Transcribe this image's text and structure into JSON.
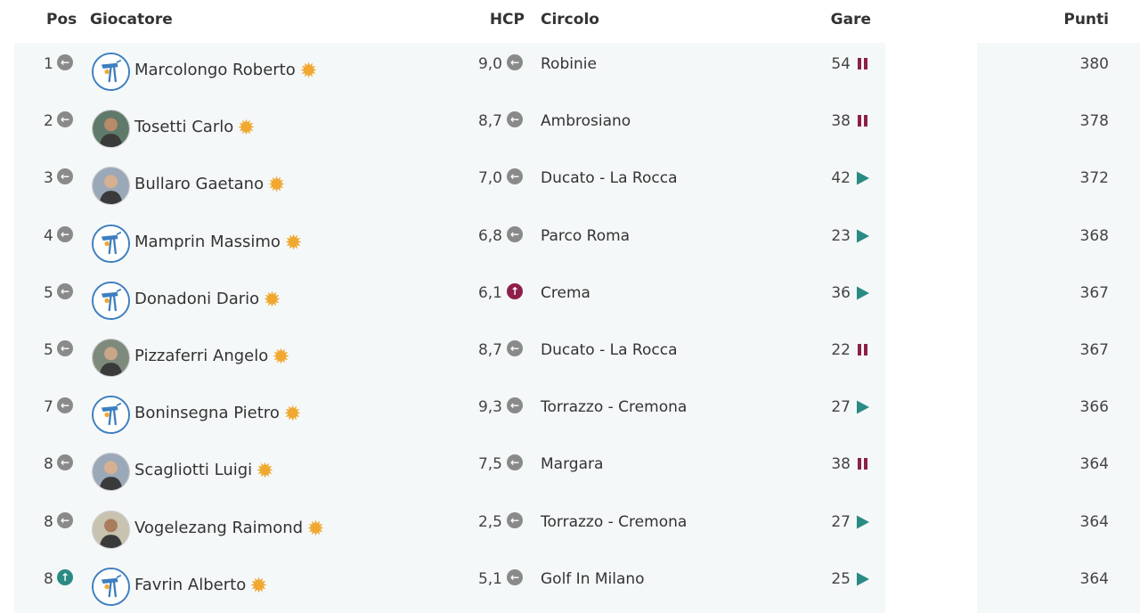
{
  "header": {
    "pos": "Pos",
    "giocatore": "Giocatore",
    "hcp": "HCP",
    "circolo": "Circolo",
    "gare": "Gare",
    "punti": "Punti"
  },
  "colors": {
    "trend_same": "#8a8a8a",
    "trend_up_teal": "#2a8a84",
    "trend_up_red": "#8e1f4a",
    "pause": "#8e1f4a",
    "play": "#2a8a84",
    "sun": "#f0a830",
    "band": "#f5f8f9"
  },
  "rows": [
    {
      "pos": "1",
      "pos_trend": "same",
      "avatar": "logo",
      "name": "Marcolongo Roberto",
      "hcp": "9,0",
      "hcp_trend": "same",
      "circolo": "Robinie",
      "gare": "54",
      "gare_status": "pause",
      "punti": "380"
    },
    {
      "pos": "2",
      "pos_trend": "same",
      "avatar": "photo",
      "name": "Tosetti Carlo",
      "hcp": "8,7",
      "hcp_trend": "same",
      "circolo": "Ambrosiano",
      "gare": "38",
      "gare_status": "pause",
      "punti": "378"
    },
    {
      "pos": "3",
      "pos_trend": "same",
      "avatar": "photo",
      "name": "Bullaro Gaetano",
      "hcp": "7,0",
      "hcp_trend": "same",
      "circolo": "Ducato - La Rocca",
      "gare": "42",
      "gare_status": "play",
      "punti": "372"
    },
    {
      "pos": "4",
      "pos_trend": "same",
      "avatar": "logo",
      "name": "Mamprin Massimo",
      "hcp": "6,8",
      "hcp_trend": "same",
      "circolo": "Parco Roma",
      "gare": "23",
      "gare_status": "play",
      "punti": "368"
    },
    {
      "pos": "5",
      "pos_trend": "same",
      "avatar": "logo",
      "name": "Donadoni Dario",
      "hcp": "6,1",
      "hcp_trend": "up-red",
      "circolo": "Crema",
      "gare": "36",
      "gare_status": "play",
      "punti": "367"
    },
    {
      "pos": "5",
      "pos_trend": "same",
      "avatar": "photo",
      "name": "Pizzaferri Angelo",
      "hcp": "8,7",
      "hcp_trend": "same",
      "circolo": "Ducato - La Rocca",
      "gare": "22",
      "gare_status": "pause",
      "punti": "367"
    },
    {
      "pos": "7",
      "pos_trend": "same",
      "avatar": "logo",
      "name": "Boninsegna Pietro",
      "hcp": "9,3",
      "hcp_trend": "same",
      "circolo": "Torrazzo - Cremona",
      "gare": "27",
      "gare_status": "play",
      "punti": "366"
    },
    {
      "pos": "8",
      "pos_trend": "same",
      "avatar": "photo",
      "name": "Scagliotti Luigi",
      "hcp": "7,5",
      "hcp_trend": "same",
      "circolo": "Margara",
      "gare": "38",
      "gare_status": "pause",
      "punti": "364"
    },
    {
      "pos": "8",
      "pos_trend": "same",
      "avatar": "photo",
      "name": "Vogelezang Raimond",
      "hcp": "2,5",
      "hcp_trend": "same",
      "circolo": "Torrazzo - Cremona",
      "gare": "27",
      "gare_status": "play",
      "punti": "364"
    },
    {
      "pos": "8",
      "pos_trend": "up-teal",
      "avatar": "logo",
      "name": "Favrin Alberto",
      "hcp": "5,1",
      "hcp_trend": "same",
      "circolo": "Golf In Milano",
      "gare": "25",
      "gare_status": "play",
      "punti": "364"
    }
  ]
}
